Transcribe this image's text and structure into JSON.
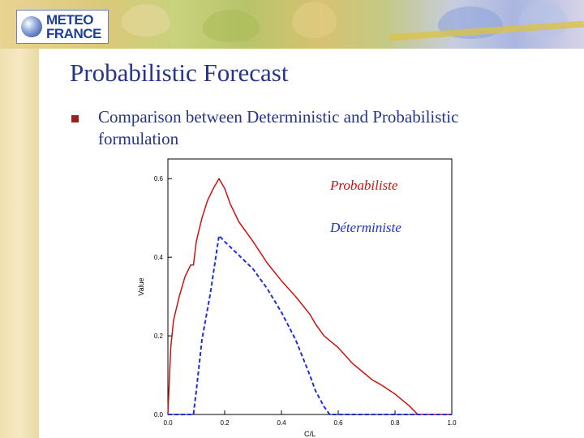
{
  "slide": {
    "title": "Probabilistic Forecast",
    "bullet": "Comparison between Deterministic and Probabilistic formulation"
  },
  "logo": {
    "line1": "METEO",
    "line2": "FRANCE",
    "accent": "#1e3f95"
  },
  "chart_data": {
    "type": "line",
    "xlabel": "C/L",
    "ylabel": "Value",
    "xlim": [
      0.0,
      1.0
    ],
    "ylim": [
      0.0,
      0.65
    ],
    "xticks": [
      "0.0",
      "0.2",
      "0.4",
      "0.6",
      "0.8",
      "1.0"
    ],
    "yticks": [
      "0.0",
      "0.2",
      "0.4",
      "0.6"
    ],
    "grid": false,
    "legend_placement": "top-right",
    "series": [
      {
        "name": "Probabiliste",
        "color": "#cc1111",
        "style": "solid",
        "x": [
          0.0,
          0.01,
          0.02,
          0.04,
          0.06,
          0.08,
          0.09,
          0.1,
          0.12,
          0.14,
          0.16,
          0.18,
          0.2,
          0.22,
          0.25,
          0.28,
          0.3,
          0.35,
          0.4,
          0.45,
          0.5,
          0.52,
          0.55,
          0.6,
          0.65,
          0.7,
          0.72,
          0.75,
          0.8,
          0.85,
          0.88,
          0.95,
          1.0
        ],
        "y": [
          0.0,
          0.17,
          0.24,
          0.3,
          0.35,
          0.38,
          0.38,
          0.44,
          0.5,
          0.545,
          0.575,
          0.6,
          0.575,
          0.535,
          0.49,
          0.46,
          0.44,
          0.385,
          0.34,
          0.3,
          0.255,
          0.23,
          0.2,
          0.17,
          0.13,
          0.1,
          0.088,
          0.076,
          0.052,
          0.022,
          0.0,
          0.0,
          0.0
        ]
      },
      {
        "name": "Déterministe",
        "color": "#1f2fd6",
        "style": "dashed",
        "x": [
          0.0,
          0.09,
          0.1,
          0.12,
          0.15,
          0.18,
          0.2,
          0.25,
          0.3,
          0.35,
          0.4,
          0.45,
          0.5,
          0.52,
          0.55,
          0.57,
          0.6,
          0.8,
          1.0
        ],
        "y": [
          0.0,
          0.0,
          0.06,
          0.19,
          0.31,
          0.455,
          0.44,
          0.405,
          0.37,
          0.32,
          0.26,
          0.19,
          0.1,
          0.06,
          0.02,
          0.0,
          0.0,
          0.0,
          0.0
        ]
      }
    ]
  }
}
